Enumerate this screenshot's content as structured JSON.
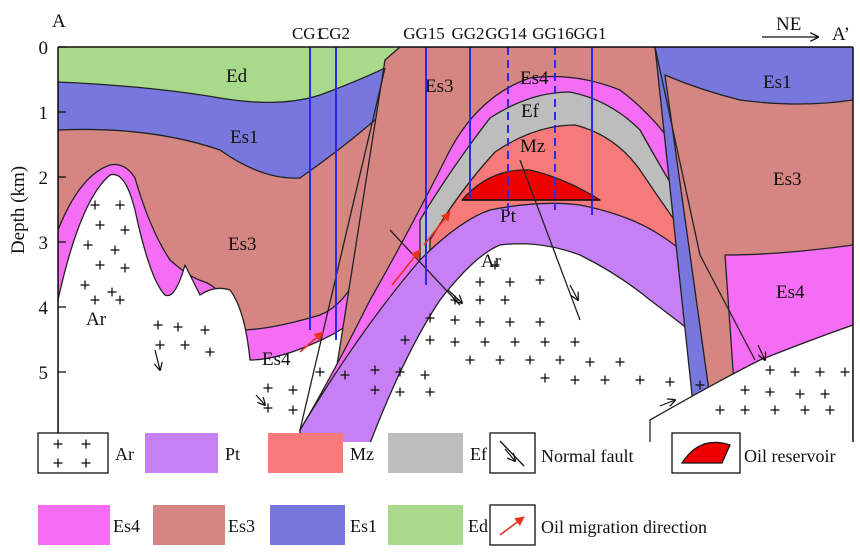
{
  "section": {
    "start_label": "A",
    "end_label": "A’",
    "direction_label": "NE",
    "y_axis_label": "Depth (km)",
    "depth_ticks": [
      "0",
      "1",
      "2",
      "3",
      "4",
      "5"
    ]
  },
  "wells": [
    "CG1",
    "CG2",
    "GG15",
    "GG2",
    "GG14",
    "GG16",
    "GG1"
  ],
  "units": {
    "Ar": {
      "label": "Ar",
      "color": "#ffffff"
    },
    "Pt": {
      "label": "Pt",
      "color": "#c77ff5"
    },
    "Mz": {
      "label": "Mz",
      "color": "#f77a7a"
    },
    "Ef": {
      "label": "Ef",
      "color": "#bdbdbd"
    },
    "Es4": {
      "label": "Es4",
      "color": "#f56df5"
    },
    "Es3": {
      "label": "Es3",
      "color": "#d58682"
    },
    "Es1": {
      "label": "Es1",
      "color": "#7777dd"
    },
    "Ed": {
      "label": "Ed",
      "color": "#a9d98a"
    }
  },
  "section_labels": {
    "ed": "Ed",
    "es1_left": "Es1",
    "es3_left": "Es3",
    "ar_left": "Ar",
    "es4_left": "Es4",
    "es3_center": "Es3",
    "es4_center": "Es4",
    "ef_center": "Ef",
    "mz_center": "Mz",
    "pt_center": "Pt",
    "ar_center": "Ar",
    "es1_right": "Es1",
    "es3_right": "Es3",
    "es4_right": "Es4"
  },
  "legend": {
    "row1": [
      {
        "key": "Ar",
        "label": "Ar"
      },
      {
        "key": "Pt",
        "label": "Pt"
      },
      {
        "key": "Mz",
        "label": "Mz"
      },
      {
        "key": "Ef",
        "label": "Ef"
      },
      {
        "key": "fault",
        "label": "Normal fault"
      },
      {
        "key": "reservoir",
        "label": "Oil reservoir"
      }
    ],
    "row2": [
      {
        "key": "Es4",
        "label": "Es4"
      },
      {
        "key": "Es3",
        "label": "Es3"
      },
      {
        "key": "Es1",
        "label": "Es1"
      },
      {
        "key": "Ed",
        "label": "Ed"
      },
      {
        "key": "migration",
        "label": "Oil migration direction"
      }
    ]
  },
  "colors": {
    "well_line": "#2a2ae8",
    "oil": "#ee0000",
    "migration_arrow": "#e8321e"
  }
}
